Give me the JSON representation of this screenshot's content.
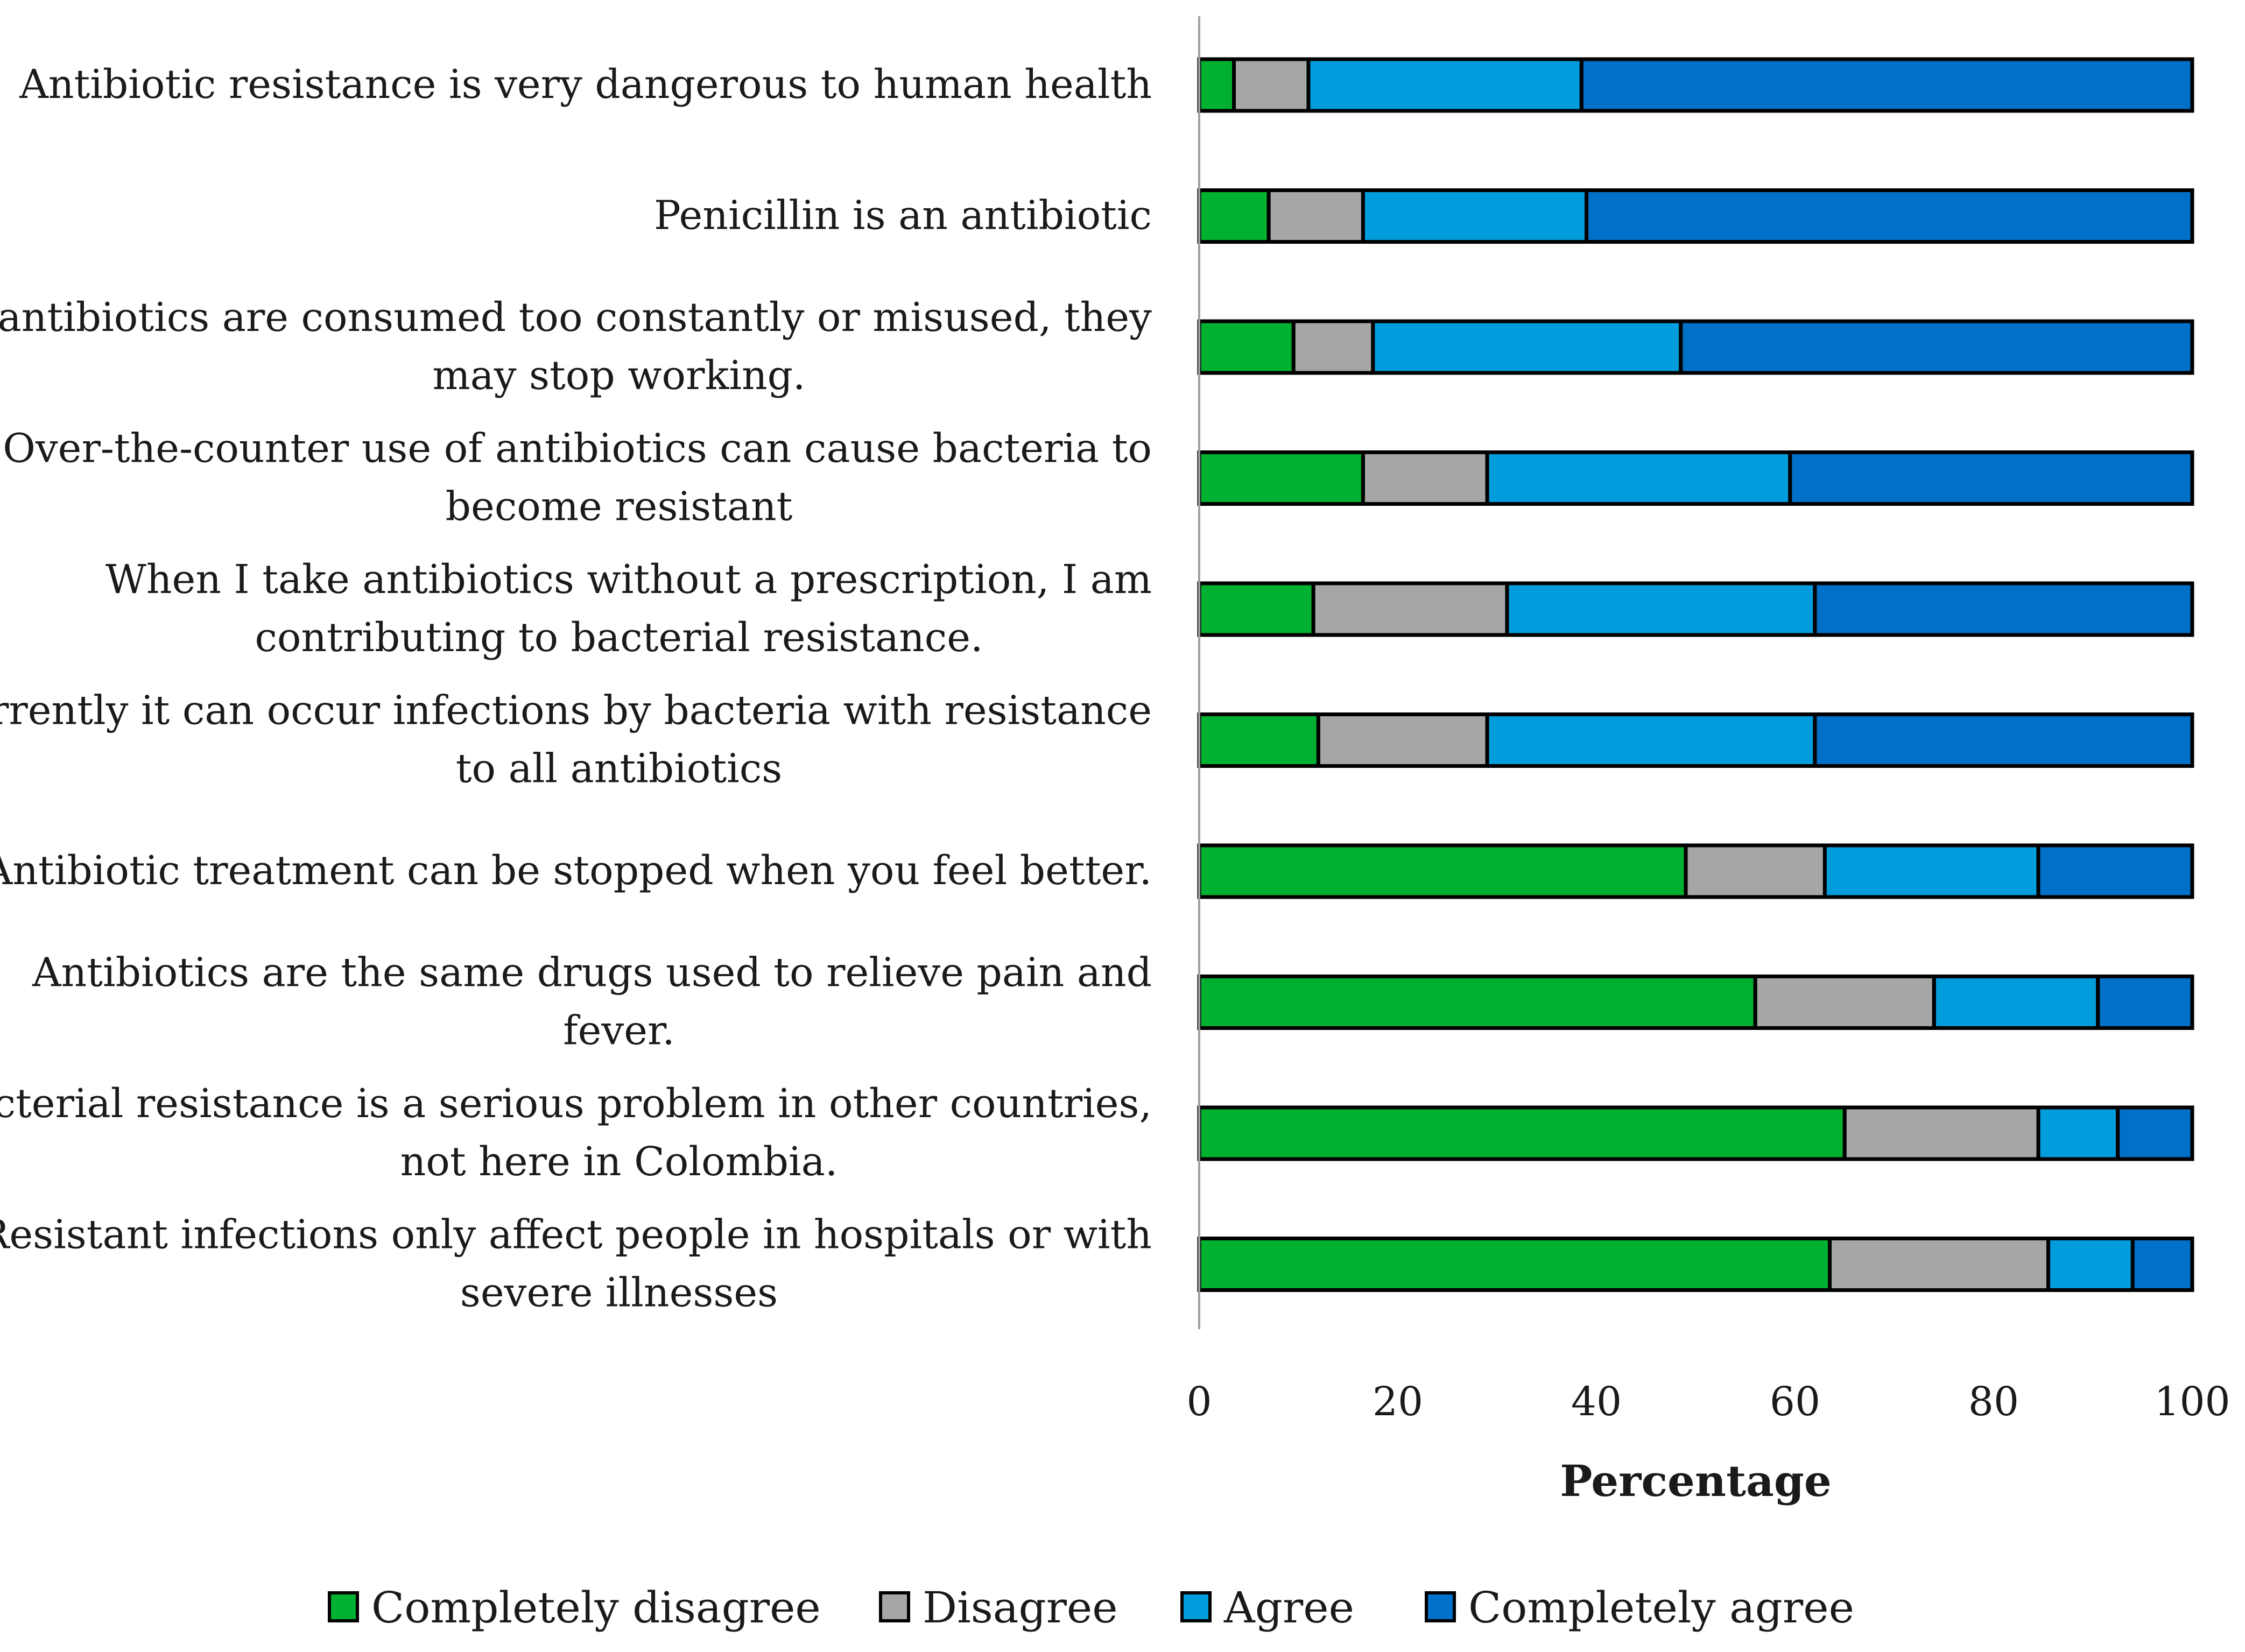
{
  "chart_data": {
    "type": "bar",
    "orientation": "horizontal",
    "stacked": true,
    "categories": [
      [
        "Antibiotic resistance is very dangerous to human health"
      ],
      [
        "Penicillin is an antibiotic"
      ],
      [
        "If antibiotics are consumed too constantly or misused, they",
        "may stop working."
      ],
      [
        "Over-the-counter use of antibiotics can cause bacteria to",
        "become resistant"
      ],
      [
        "When I take antibiotics without a prescription, I am",
        "contributing to bacterial resistance."
      ],
      [
        "Currently it can occur infections by bacteria with resistance",
        "to all antibiotics"
      ],
      [
        "Antibiotic treatment can be stopped when you feel better."
      ],
      [
        "Antibiotics are the same drugs used to relieve pain and",
        "fever."
      ],
      [
        "Bacterial resistance is a serious problem in other countries,",
        "not here in Colombia."
      ],
      [
        "Resistant infections only affect people in hospitals or with",
        "severe illnesses"
      ]
    ],
    "series": [
      {
        "name": "Completely disagree",
        "color": "#00b030",
        "values": [
          3.5,
          7,
          9.5,
          16.5,
          11.5,
          12,
          49,
          56,
          65,
          63.5
        ]
      },
      {
        "name": "Disagree",
        "color": "#a6a6a6",
        "values": [
          7.5,
          9.5,
          8,
          12.5,
          19.5,
          17,
          14,
          18,
          19.5,
          22
        ]
      },
      {
        "name": "Agree",
        "color": "#009cdc",
        "values": [
          27.5,
          22.5,
          31,
          30.5,
          31,
          33,
          21.5,
          16.5,
          8,
          8.5
        ]
      },
      {
        "name": "Completely agree",
        "color": "#0070c8",
        "values": [
          61.5,
          61,
          51.5,
          40.5,
          38,
          38,
          15.5,
          9.5,
          7.5,
          6
        ]
      }
    ],
    "xlabel": "Percentage",
    "xlim": [
      0,
      100
    ],
    "xticks": [
      "0",
      "20",
      "40",
      "60",
      "80",
      "100"
    ],
    "legend_position": "bottom"
  }
}
